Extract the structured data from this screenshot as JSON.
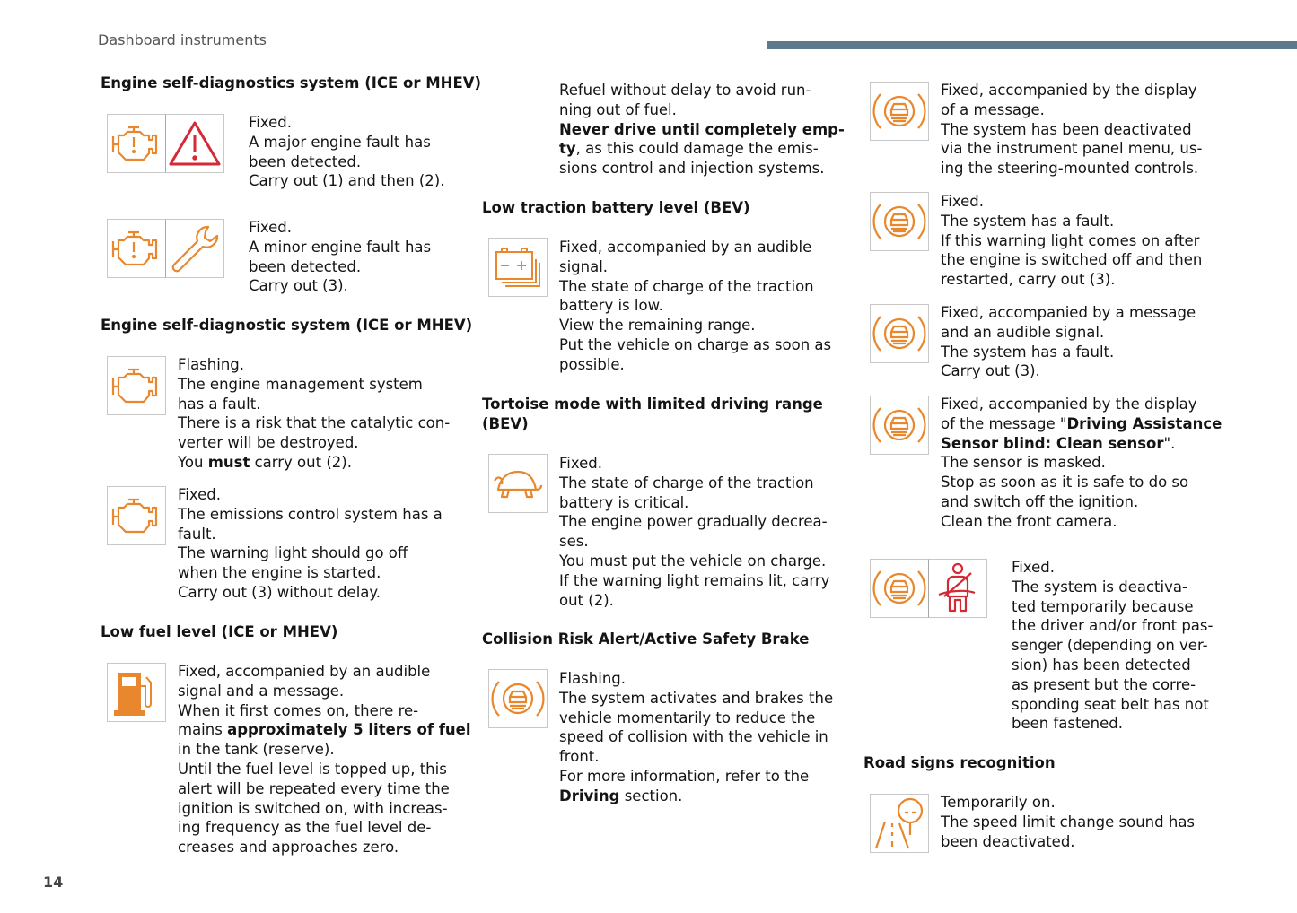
{
  "page": {
    "section_title": "Dashboard instruments",
    "page_number": "14",
    "accent_bar_color": "#5b7a8c",
    "icon_orange": "#e8872e",
    "icon_red": "#d42a35"
  },
  "headings": [
    {
      "id": "h1",
      "lines": [
        "Engine self-diagnostics system (ICE or MHEV)"
      ]
    },
    {
      "id": "h2",
      "lines": [
        "Engine self-diagnostic system (ICE or MHEV)"
      ]
    },
    {
      "id": "h3",
      "lines": [
        "Low fuel level (ICE or MHEV)"
      ]
    },
    {
      "id": "h4",
      "lines": [
        "Low traction battery level (BEV)"
      ]
    },
    {
      "id": "h5",
      "lines": [
        "Tortoise mode with limited driving range",
        "(BEV)"
      ]
    },
    {
      "id": "h6",
      "lines": [
        "Collision Risk Alert/Active Safety Brake"
      ]
    },
    {
      "id": "h7",
      "lines": [
        "Road signs recognition"
      ]
    }
  ],
  "blocks": [
    {
      "id": "b1",
      "icons": [
        "engine-fault-icon",
        "warning-triangle-icon"
      ],
      "lines": [
        "Fixed.",
        "A major engine fault has",
        "been detected.",
        "Carry out (1) and then (2)."
      ]
    },
    {
      "id": "b2",
      "icons": [
        "engine-fault-icon",
        "wrench-icon"
      ],
      "lines": [
        "Fixed.",
        "A minor engine fault has",
        "been detected.",
        "Carry out (3)."
      ]
    },
    {
      "id": "b3",
      "icons": [
        "engine-icon"
      ],
      "lines": [
        "Flashing.",
        "The engine management system",
        "has a fault.",
        "There is a risk that the catalytic con-",
        "verter will be destroyed.",
        [
          {
            "t": "You "
          },
          {
            "t": "must",
            "b": true
          },
          {
            "t": " carry out (2)."
          }
        ]
      ]
    },
    {
      "id": "b4",
      "icons": [
        "engine-icon"
      ],
      "lines": [
        "Fixed.",
        "The emissions control system has a",
        "fault.",
        "The warning light should go off",
        "when the engine is started.",
        "Carry out (3) without delay."
      ]
    },
    {
      "id": "b5",
      "icons": [
        "fuel-pump-icon"
      ],
      "lines": [
        "Fixed, accompanied by an audible",
        "signal and a message.",
        "When it first comes on, there re-",
        [
          {
            "t": "mains "
          },
          {
            "t": "approximately 5 liters of fuel",
            "b": true
          }
        ],
        "in the tank (reserve).",
        "Until the fuel level is topped up, this",
        "alert will be repeated every time the",
        "ignition is switched on, with increas-",
        "ing frequency as the fuel level de-",
        "creases and approaches zero."
      ]
    },
    {
      "id": "b6",
      "icons": [],
      "lines": [
        "Refuel without delay to avoid run-",
        "ning out of fuel.",
        [
          {
            "t": "Never drive until completely emp-",
            "b": true
          }
        ],
        [
          {
            "t": "ty",
            "b": true
          },
          {
            "t": ", as this could damage the emis-"
          }
        ],
        "sions control and injection systems."
      ]
    },
    {
      "id": "b7",
      "icons": [
        "traction-battery-icon"
      ],
      "lines": [
        "Fixed, accompanied by an audible",
        "signal.",
        "The state of charge of the traction",
        "battery is low.",
        "View the remaining range.",
        "Put the vehicle on charge as soon as",
        "possible."
      ]
    },
    {
      "id": "b8",
      "icons": [
        "tortoise-icon"
      ],
      "lines": [
        "Fixed.",
        "The state of charge of the traction",
        "battery is critical.",
        "The engine power gradually decrea-",
        "ses.",
        "You must put the vehicle on charge.",
        "If the warning light remains lit, carry",
        "out (2)."
      ]
    },
    {
      "id": "b9",
      "icons": [
        "collision-alert-icon"
      ],
      "lines": [
        "Flashing.",
        "The system activates and brakes the",
        "vehicle momentarily to reduce the",
        "speed of collision with the vehicle in",
        "front.",
        "For more information, refer to the",
        [
          {
            "t": "Driving",
            "b": true
          },
          {
            "t": " section."
          }
        ]
      ]
    },
    {
      "id": "b10",
      "icons": [
        "collision-alert-icon"
      ],
      "lines": [
        "Fixed, accompanied by the display",
        "of a message.",
        "The system has been deactivated",
        "via the instrument panel menu, us-",
        "ing the steering-mounted controls."
      ]
    },
    {
      "id": "b11",
      "icons": [
        "collision-alert-icon"
      ],
      "lines": [
        "Fixed.",
        "The system has a fault.",
        "If this warning light comes on after",
        "the engine is switched off and then",
        "restarted, carry out (3)."
      ]
    },
    {
      "id": "b12",
      "icons": [
        "collision-alert-icon"
      ],
      "lines": [
        "Fixed, accompanied by a message",
        "and an audible signal.",
        "The system has a fault.",
        "Carry out (3)."
      ]
    },
    {
      "id": "b13",
      "icons": [
        "collision-alert-icon"
      ],
      "lines": [
        "Fixed, accompanied by the display",
        [
          {
            "t": "of the message \""
          },
          {
            "t": "Driving Assistance",
            "b": true
          }
        ],
        [
          {
            "t": "Sensor blind: Clean sensor",
            "b": true
          },
          {
            "t": "\"."
          }
        ],
        "The sensor is masked.",
        "Stop as soon as it is safe to do so",
        "and switch off the ignition.",
        "Clean the front camera."
      ]
    },
    {
      "id": "b14",
      "icons": [
        "collision-alert-icon",
        "seatbelt-icon"
      ],
      "lines": [
        "Fixed.",
        "The system is deactiva-",
        "ted temporarily because",
        "the driver and/or front pas-",
        "senger (depending on ver-",
        "sion) has been detected",
        "as present but the corre-",
        "sponding seat belt has not",
        "been fastened."
      ]
    },
    {
      "id": "b15",
      "icons": [
        "road-sign-recognition-icon"
      ],
      "lines": [
        "Temporarily on.",
        "The speed limit change sound has",
        "been deactivated."
      ]
    }
  ]
}
